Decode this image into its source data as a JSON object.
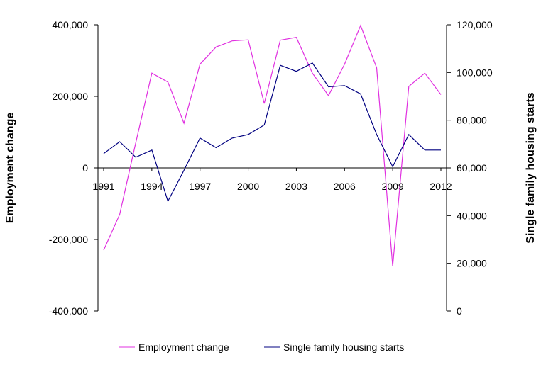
{
  "chart_data": {
    "type": "line",
    "title": "",
    "xlabel": "",
    "ylabel": "Employment change",
    "y2label": "Single family housing starts",
    "x": [
      1991,
      1992,
      1993,
      1994,
      1995,
      1996,
      1997,
      1998,
      1999,
      2000,
      2001,
      2002,
      2003,
      2004,
      2005,
      2006,
      2007,
      2008,
      2009,
      2010,
      2011,
      2012
    ],
    "x_tick_labels": [
      "1991",
      "1994",
      "1997",
      "2000",
      "2003",
      "2006",
      "2009",
      "2012"
    ],
    "y_ticks": [
      "400,000",
      "200,000",
      "0",
      "-200,000",
      "-400,000"
    ],
    "y2_ticks": [
      "120,000",
      "100,000",
      "80,000",
      "60,000",
      "40,000",
      "20,000",
      "0"
    ],
    "ylim": [
      -400000,
      400000
    ],
    "y2lim": [
      0,
      120000
    ],
    "grid": false,
    "legend_position": "bottom",
    "series": [
      {
        "name": "Employment change",
        "axis": "left",
        "color": "#e030e0",
        "values": [
          -230000,
          -130000,
          70000,
          265000,
          240000,
          125000,
          290000,
          338000,
          355000,
          358000,
          180000,
          357000,
          365000,
          265000,
          202000,
          290000,
          398000,
          280000,
          -275000,
          228000,
          265000,
          205000
        ]
      },
      {
        "name": "Single family housing starts",
        "axis": "right",
        "color": "#000080",
        "values": [
          66000,
          71000,
          64500,
          67500,
          46000,
          59000,
          72500,
          68500,
          72500,
          74000,
          78000,
          103000,
          100500,
          104000,
          94000,
          94500,
          91000,
          74000,
          60500,
          74000,
          67500,
          67500
        ]
      }
    ]
  }
}
